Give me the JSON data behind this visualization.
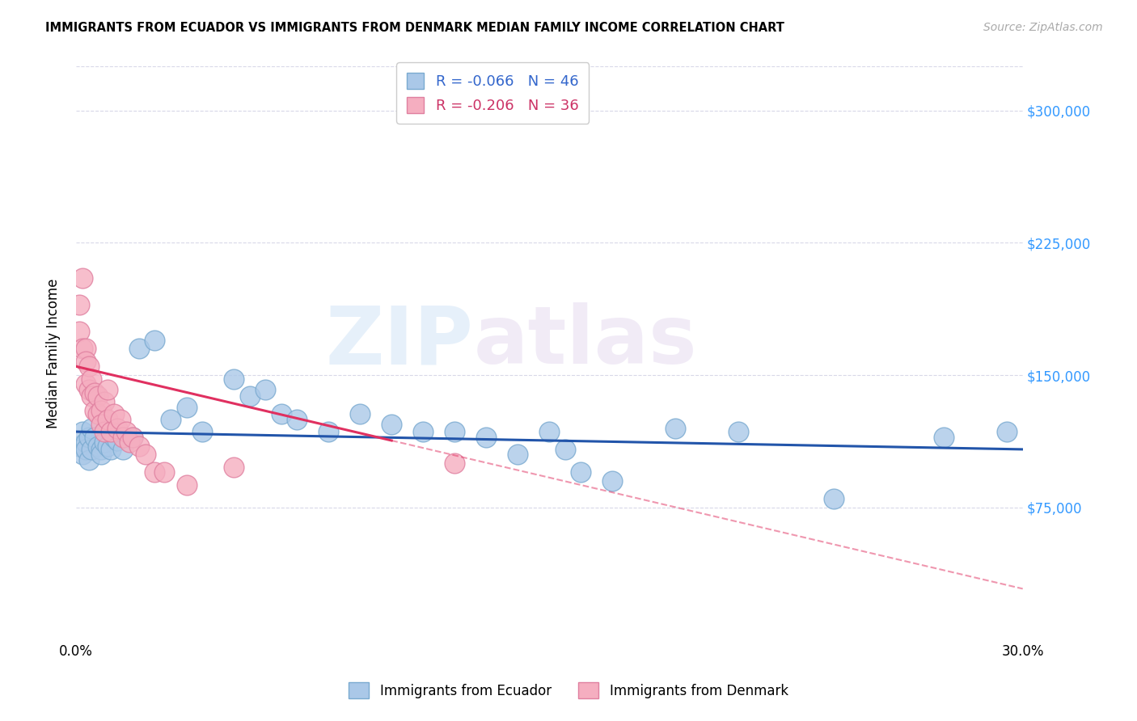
{
  "title": "IMMIGRANTS FROM ECUADOR VS IMMIGRANTS FROM DENMARK MEDIAN FAMILY INCOME CORRELATION CHART",
  "source": "Source: ZipAtlas.com",
  "ylabel": "Median Family Income",
  "xlim": [
    0.0,
    0.3
  ],
  "ylim": [
    0,
    325000
  ],
  "yticks": [
    75000,
    150000,
    225000,
    300000
  ],
  "ytick_labels": [
    "$75,000",
    "$150,000",
    "$225,000",
    "$300,000"
  ],
  "xtick_labels": [
    "0.0%",
    "30.0%"
  ],
  "legend_r_blue": "R = -0.066",
  "legend_n_blue": "N = 46",
  "legend_r_pink": "R = -0.206",
  "legend_n_pink": "N = 36",
  "legend_title_blue": "Immigrants from Ecuador",
  "legend_title_pink": "Immigrants from Denmark",
  "watermark": "ZIPatlas",
  "background_color": "#ffffff",
  "grid_color": "#d8d8e8",
  "ecuador_color": "#aac8e8",
  "ecuador_edge": "#7aaad0",
  "denmark_color": "#f5aec0",
  "denmark_edge": "#e080a0",
  "trend_ecuador_color": "#2255aa",
  "trend_denmark_color": "#e03060",
  "ecuador_points_x": [
    0.001,
    0.002,
    0.002,
    0.003,
    0.003,
    0.004,
    0.004,
    0.005,
    0.005,
    0.006,
    0.007,
    0.008,
    0.008,
    0.009,
    0.01,
    0.011,
    0.012,
    0.013,
    0.015,
    0.018,
    0.02,
    0.025,
    0.03,
    0.035,
    0.04,
    0.05,
    0.055,
    0.06,
    0.065,
    0.07,
    0.08,
    0.09,
    0.1,
    0.11,
    0.12,
    0.13,
    0.14,
    0.15,
    0.155,
    0.16,
    0.17,
    0.19,
    0.21,
    0.24,
    0.275,
    0.295
  ],
  "ecuador_points_y": [
    110000,
    118000,
    105000,
    112000,
    108000,
    115000,
    102000,
    120000,
    108000,
    115000,
    110000,
    108000,
    105000,
    112000,
    110000,
    108000,
    115000,
    113000,
    108000,
    115000,
    165000,
    170000,
    125000,
    132000,
    118000,
    148000,
    138000,
    142000,
    128000,
    125000,
    118000,
    128000,
    122000,
    118000,
    118000,
    115000,
    105000,
    118000,
    108000,
    95000,
    90000,
    120000,
    118000,
    80000,
    115000,
    118000
  ],
  "denmark_points_x": [
    0.001,
    0.001,
    0.002,
    0.002,
    0.003,
    0.003,
    0.003,
    0.004,
    0.004,
    0.005,
    0.005,
    0.006,
    0.006,
    0.007,
    0.007,
    0.008,
    0.008,
    0.009,
    0.009,
    0.01,
    0.01,
    0.011,
    0.012,
    0.013,
    0.014,
    0.015,
    0.016,
    0.017,
    0.018,
    0.02,
    0.022,
    0.025,
    0.028,
    0.035,
    0.05,
    0.12
  ],
  "denmark_points_y": [
    175000,
    190000,
    205000,
    165000,
    165000,
    158000,
    145000,
    155000,
    142000,
    148000,
    138000,
    140000,
    130000,
    138000,
    128000,
    130000,
    122000,
    135000,
    118000,
    125000,
    142000,
    118000,
    128000,
    120000,
    125000,
    115000,
    118000,
    112000,
    115000,
    110000,
    105000,
    95000,
    95000,
    88000,
    98000,
    100000
  ],
  "trend_dk_solid_end": 0.1,
  "trend_dk_dash_end": 0.3
}
